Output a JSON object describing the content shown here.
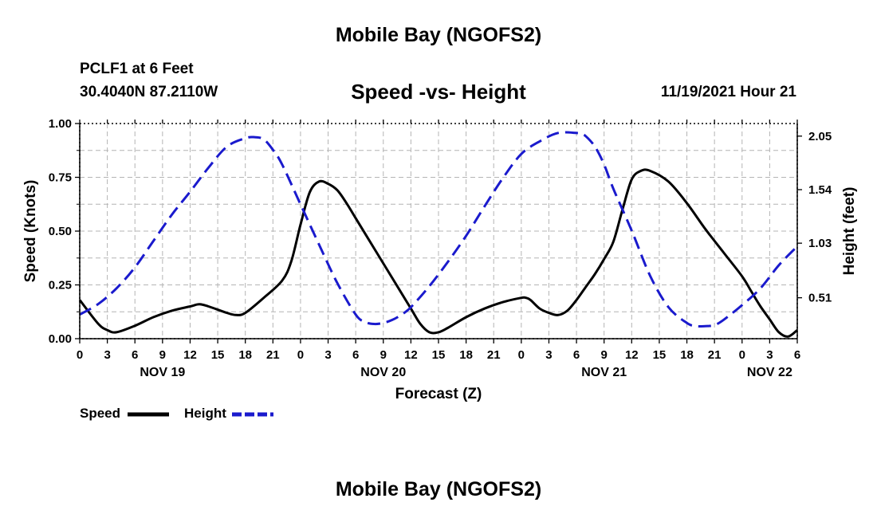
{
  "page": {
    "title": "Mobile Bay (NGOFS2)",
    "station": "PCLF1 at 6 Feet",
    "coords": "30.4040N  87.2110W",
    "subtitle": "Speed -vs- Height",
    "datetime": "11/19/2021 Hour 21",
    "footer_title": "Mobile Bay (NGOFS2)"
  },
  "colors": {
    "speed": "#000000",
    "height": "#1a1acd",
    "grid": "#b4b4b4"
  },
  "chart_data": {
    "type": "line",
    "xlabel": "Forecast (Z)",
    "ylabel_left": "Speed (Knots)",
    "ylabel_right": "Height (feet)",
    "xlim": [
      0,
      78
    ],
    "ylim_left": [
      0,
      1
    ],
    "ylim_right": [
      0.12,
      2.17
    ],
    "grid": true,
    "x_tick_labels": [
      "0",
      "3",
      "6",
      "9",
      "12",
      "15",
      "18",
      "21",
      "0",
      "3",
      "6",
      "9",
      "12",
      "15",
      "18",
      "21",
      "0",
      "3",
      "6",
      "9",
      "12",
      "15",
      "18",
      "21",
      "0",
      "3",
      "6"
    ],
    "y_left_ticks": [
      0,
      0.25,
      0.5,
      0.75,
      1.0
    ],
    "y_left_tick_labels": [
      "0.00",
      "0.25",
      "0.50",
      "0.75",
      "1.00"
    ],
    "y_right_ticks": [
      0.51,
      1.03,
      1.54,
      2.05
    ],
    "y_right_tick_labels": [
      "0.51",
      "1.03",
      "1.54",
      "2.05"
    ],
    "day_labels": [
      {
        "x": 9,
        "label": "NOV 19"
      },
      {
        "x": 33,
        "label": "NOV 20"
      },
      {
        "x": 57,
        "label": "NOV 21"
      },
      {
        "x": 75,
        "label": "NOV 22"
      }
    ],
    "series": [
      {
        "name": "Speed",
        "axis": "left",
        "style": "solid",
        "x": [
          0,
          2,
          3,
          4,
          6,
          8,
          10,
          12,
          13,
          14,
          16,
          17,
          18,
          20,
          22,
          23,
          24,
          25,
          26,
          27,
          28,
          29,
          30,
          32,
          34,
          36,
          37,
          38,
          39,
          40,
          42,
          44,
          46,
          48,
          48.5,
          49,
          50,
          51,
          52,
          53,
          54,
          55,
          56,
          57,
          58,
          59,
          60,
          61,
          62,
          64,
          66,
          68,
          70,
          72,
          73,
          74,
          75,
          76,
          77,
          78
        ],
        "y": [
          0.18,
          0.07,
          0.04,
          0.03,
          0.06,
          0.1,
          0.13,
          0.15,
          0.16,
          0.15,
          0.12,
          0.11,
          0.12,
          0.19,
          0.27,
          0.36,
          0.53,
          0.68,
          0.73,
          0.72,
          0.69,
          0.63,
          0.56,
          0.42,
          0.28,
          0.14,
          0.07,
          0.03,
          0.03,
          0.05,
          0.1,
          0.14,
          0.17,
          0.19,
          0.19,
          0.18,
          0.14,
          0.12,
          0.11,
          0.13,
          0.18,
          0.24,
          0.3,
          0.37,
          0.45,
          0.6,
          0.74,
          0.78,
          0.78,
          0.73,
          0.63,
          0.51,
          0.4,
          0.29,
          0.22,
          0.15,
          0.09,
          0.03,
          0.01,
          0.04
        ]
      },
      {
        "name": "Height",
        "axis": "right",
        "style": "dashed",
        "x": [
          0,
          2,
          4,
          6,
          8,
          10,
          12,
          14,
          16,
          18,
          19,
          20,
          21,
          22,
          24,
          26,
          28,
          30,
          31,
          32,
          33,
          34,
          35,
          36,
          38,
          40,
          42,
          44,
          46,
          48,
          50,
          52,
          54,
          54.5,
          55,
          56,
          57,
          58,
          60,
          62,
          64,
          66,
          67,
          68,
          69,
          70,
          72,
          74,
          76,
          78
        ],
        "y": [
          0.35,
          0.45,
          0.6,
          0.8,
          1.05,
          1.3,
          1.52,
          1.75,
          1.95,
          2.03,
          2.04,
          2.02,
          1.92,
          1.78,
          1.4,
          1.02,
          0.65,
          0.35,
          0.28,
          0.26,
          0.27,
          0.3,
          0.35,
          0.42,
          0.62,
          0.85,
          1.1,
          1.38,
          1.65,
          1.88,
          2.0,
          2.08,
          2.08,
          2.07,
          2.05,
          1.95,
          1.78,
          1.55,
          1.15,
          0.72,
          0.42,
          0.27,
          0.24,
          0.24,
          0.25,
          0.3,
          0.44,
          0.6,
          0.82,
          1.0
        ]
      }
    ],
    "legend": [
      {
        "name": "Speed",
        "style": "solid"
      },
      {
        "name": "Height",
        "style": "dashed"
      }
    ]
  }
}
